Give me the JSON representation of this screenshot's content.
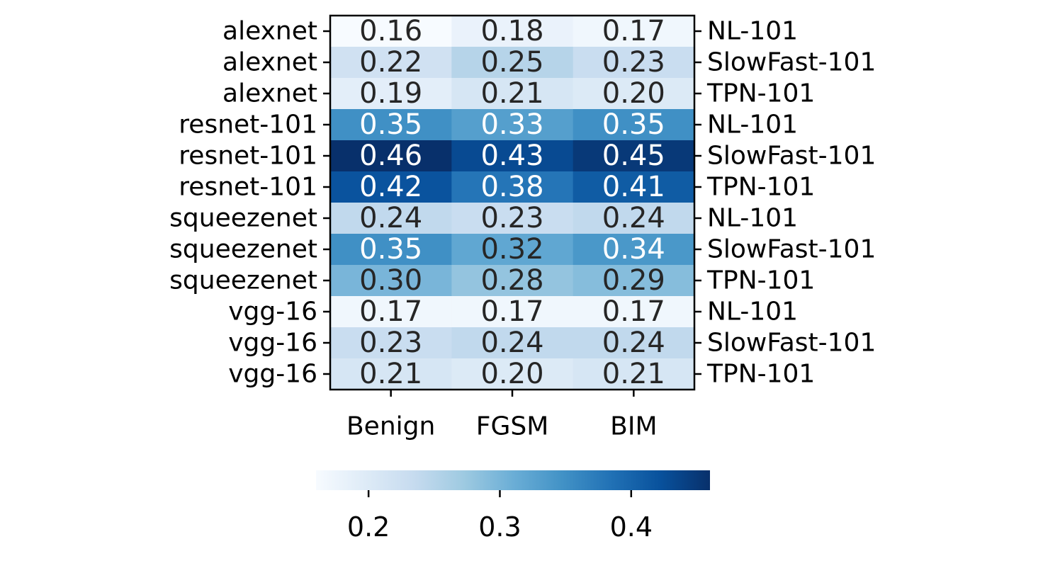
{
  "chart_data": {
    "type": "heatmap",
    "title": "",
    "xlabel": "",
    "ylabel": "",
    "columns": [
      "Benign",
      "FGSM",
      "BIM"
    ],
    "row_labels_left": [
      "alexnet",
      "alexnet",
      "alexnet",
      "resnet-101",
      "resnet-101",
      "resnet-101",
      "squeezenet",
      "squeezenet",
      "squeezenet",
      "vgg-16",
      "vgg-16",
      "vgg-16"
    ],
    "row_labels_right": [
      "NL-101",
      "SlowFast-101",
      "TPN-101",
      "NL-101",
      "SlowFast-101",
      "TPN-101",
      "NL-101",
      "SlowFast-101",
      "TPN-101",
      "NL-101",
      "SlowFast-101",
      "TPN-101"
    ],
    "values": [
      [
        0.16,
        0.18,
        0.17
      ],
      [
        0.22,
        0.25,
        0.23
      ],
      [
        0.19,
        0.21,
        0.2
      ],
      [
        0.35,
        0.33,
        0.35
      ],
      [
        0.46,
        0.43,
        0.45
      ],
      [
        0.42,
        0.38,
        0.41
      ],
      [
        0.24,
        0.23,
        0.24
      ],
      [
        0.35,
        0.32,
        0.34
      ],
      [
        0.3,
        0.28,
        0.29
      ],
      [
        0.17,
        0.17,
        0.17
      ],
      [
        0.23,
        0.24,
        0.24
      ],
      [
        0.21,
        0.2,
        0.21
      ]
    ],
    "value_labels": [
      [
        "0.16",
        "0.18",
        "0.17"
      ],
      [
        "0.22",
        "0.25",
        "0.23"
      ],
      [
        "0.19",
        "0.21",
        "0.20"
      ],
      [
        "0.35",
        "0.33",
        "0.35"
      ],
      [
        "0.46",
        "0.43",
        "0.45"
      ],
      [
        "0.42",
        "0.38",
        "0.41"
      ],
      [
        "0.24",
        "0.23",
        "0.24"
      ],
      [
        "0.35",
        "0.32",
        "0.34"
      ],
      [
        "0.30",
        "0.28",
        "0.29"
      ],
      [
        "0.17",
        "0.17",
        "0.17"
      ],
      [
        "0.23",
        "0.24",
        "0.24"
      ],
      [
        "0.21",
        "0.20",
        "0.21"
      ]
    ],
    "colormap": "Blues",
    "colormap_stops": [
      "#f7fbff",
      "#deebf7",
      "#c6dbef",
      "#9ecae1",
      "#6baed6",
      "#4292c6",
      "#2171b5",
      "#08519c",
      "#08306b"
    ],
    "colorbar": {
      "orientation": "horizontal",
      "position": "bottom",
      "range": [
        0.16,
        0.46
      ],
      "ticks": [
        0.2,
        0.3,
        0.4
      ],
      "tick_labels": [
        "0.2",
        "0.3",
        "0.4"
      ]
    },
    "grid": false
  }
}
